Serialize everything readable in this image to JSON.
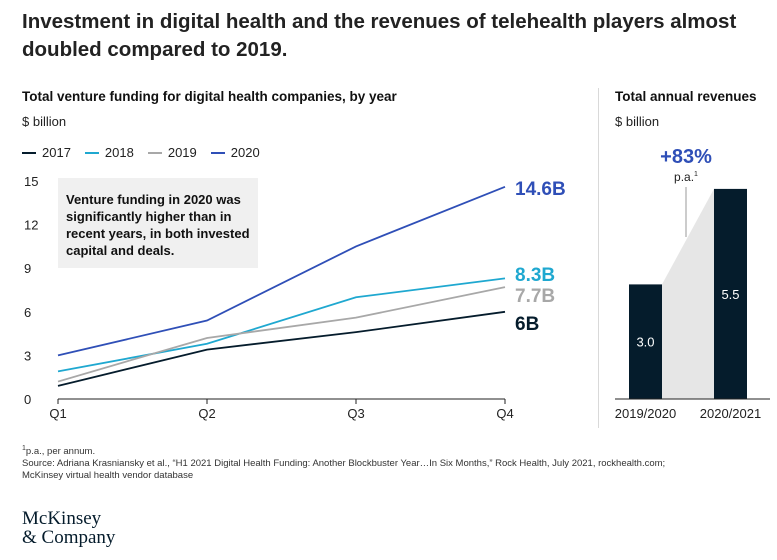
{
  "headline": "Investment in digital health and the revenues of telehealth players almost doubled compared to 2019.",
  "left_panel": {
    "subtitle": "Total venture funding for digital health companies, by year",
    "unit": "$ billion",
    "annotation": "Venture funding in 2020 was significantly higher than in recent years, in both invested capital and deals."
  },
  "right_panel": {
    "subtitle": "Total annual revenues",
    "unit": "$ billion",
    "growth_label": "+83%",
    "growth_note": "p.a.",
    "growth_note_sup": "1"
  },
  "footnote": {
    "sup": "1",
    "line1": "p.a., per annum.",
    "line2": "Source: Adriana Krasniansky et al., “H1 2021 Digital Health Funding: Another Blockbuster Year…In Six Months,” Rock Health, July 2021, rockhealth.com;",
    "line3": "McKinsey virtual health vendor database"
  },
  "logo": {
    "line1": "McKinsey",
    "line2": "& Company"
  },
  "chart_data": [
    {
      "type": "line",
      "x": [
        "Q1",
        "Q2",
        "Q3",
        "Q4"
      ],
      "ylim": [
        0,
        15
      ],
      "yticks": [
        0,
        3,
        6,
        9,
        12,
        15
      ],
      "grid": false,
      "legend_position": "top-left",
      "series": [
        {
          "name": "2017",
          "color": "#051c2c",
          "values": [
            0.9,
            3.4,
            4.6,
            6.0
          ],
          "end_label": "6B"
        },
        {
          "name": "2018",
          "color": "#1fa8d0",
          "values": [
            1.9,
            3.8,
            7.0,
            8.3
          ],
          "end_label": "8.3B"
        },
        {
          "name": "2019",
          "color": "#a8a8a8",
          "values": [
            1.2,
            4.2,
            5.6,
            7.7
          ],
          "end_label": "7.7B"
        },
        {
          "name": "2020",
          "color": "#2f4fb7",
          "values": [
            3.0,
            5.4,
            10.5,
            14.6
          ],
          "end_label": "14.6B"
        }
      ]
    },
    {
      "type": "bar",
      "categories": [
        "2019/2020",
        "2020/2021"
      ],
      "values": [
        3.0,
        5.5
      ],
      "value_labels": [
        "3.0",
        "5.5"
      ],
      "color": "#051c2c"
    }
  ]
}
